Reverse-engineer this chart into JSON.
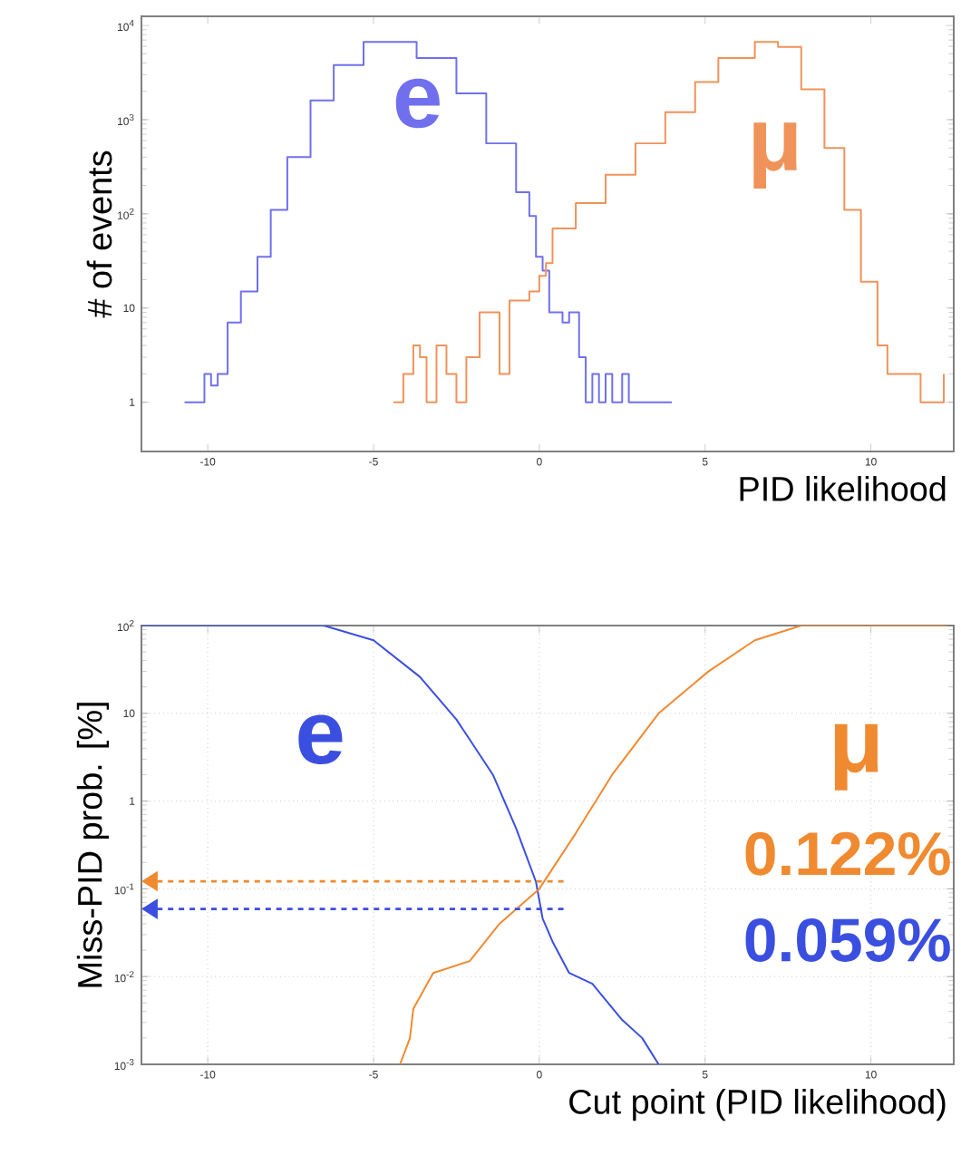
{
  "chart_data": [
    {
      "type": "step",
      "xlabel": "PID likelihood",
      "ylabel": "# of events",
      "log": "y",
      "legend": false,
      "marker": "none",
      "xlim": [
        -12,
        12.5
      ],
      "ylim": [
        0.3,
        12500
      ],
      "xticks": [
        -10,
        -5,
        0,
        5,
        10
      ],
      "yticks": [
        1,
        10,
        {
          "value": 100,
          "label": "10$^{2}$"
        },
        {
          "value": 1000,
          "label": "10$^{3}$"
        },
        {
          "value": 10000,
          "label": "10$^{4}$"
        }
      ],
      "series": [
        {
          "name": "e",
          "color": "#7070ee",
          "x": [
            -10.7,
            -10.1,
            -9.9,
            -9.7,
            -9.4,
            -9.0,
            -8.5,
            -8.1,
            -7.6,
            -6.9,
            -6.2,
            -5.3,
            -4.4,
            -3.7,
            -2.5,
            -1.6,
            -0.7,
            -0.3,
            -0.1,
            0.1,
            0.3,
            0.7,
            0.9,
            1.2,
            1.4,
            1.6,
            1.8,
            2.0,
            2.2,
            2.5,
            2.7,
            2.9,
            3.5,
            4.0
          ],
          "values": [
            1,
            2,
            1.5,
            2,
            7,
            15,
            35,
            110,
            400,
            1600,
            3800,
            6700,
            6700,
            4500,
            1900,
            560,
            170,
            95,
            35,
            25,
            9,
            7,
            9,
            3,
            1,
            2,
            1,
            2,
            1,
            2,
            1,
            1,
            1,
            1
          ]
        },
        {
          "name": "μ",
          "color": "#f0935a",
          "x": [
            -4.4,
            -4.1,
            -3.8,
            -3.6,
            -3.4,
            -3.1,
            -2.8,
            -2.5,
            -2.2,
            -1.8,
            -1.5,
            -1.2,
            -0.9,
            -0.7,
            -0.3,
            0.0,
            0.2,
            0.4,
            1.1,
            2.0,
            2.9,
            3.8,
            4.7,
            5.4,
            6.5,
            7.2,
            7.9,
            8.6,
            9.2,
            9.7,
            10.2,
            10.5,
            11.2,
            11.5,
            12.2
          ],
          "values": [
            1,
            2,
            4,
            3,
            1,
            4,
            2,
            1,
            3,
            9,
            9,
            2,
            12,
            12,
            15,
            22,
            30,
            70,
            130,
            260,
            560,
            1200,
            2500,
            4500,
            6700,
            5900,
            2100,
            500,
            110,
            19,
            4,
            2,
            2,
            1,
            2
          ]
        }
      ]
    },
    {
      "type": "line",
      "xlabel": "Cut point (PID likelihood)",
      "ylabel": "Miss-PID prob. [%]",
      "log": "y",
      "legend": false,
      "marker": "none",
      "grid": true,
      "xlim": [
        -12,
        12.5
      ],
      "ylim": [
        0.001,
        100
      ],
      "xticks": [
        -10,
        -5,
        0,
        5,
        10
      ],
      "yticks": [
        {
          "value": 0.001,
          "label": "10$^{-3}$"
        },
        {
          "value": 0.01,
          "label": "10$^{-2}$"
        },
        {
          "value": 0.1,
          "label": "10$^{-1}$"
        },
        1,
        10,
        {
          "value": 100,
          "label": "10$^{2}$"
        }
      ],
      "ref_lines": [
        {
          "axis": "y",
          "value": 0.122,
          "label": "0.122%",
          "color": "#f08a30",
          "line_style": "dashed"
        },
        {
          "axis": "y",
          "value": 0.059,
          "label": "0.059%",
          "color": "#3a4fe0",
          "line_style": "dashed"
        }
      ],
      "series": [
        {
          "name": "e",
          "color": "#3a4fe0",
          "x": [
            -12,
            -6.5,
            -5.0,
            -3.6,
            -2.5,
            -1.4,
            -0.7,
            -0.1,
            0.1,
            0.4,
            0.9,
            1.6,
            2.5,
            3.1,
            3.6
          ],
          "values": [
            100,
            100,
            68,
            26,
            8.5,
            2.0,
            0.49,
            0.12,
            0.046,
            0.025,
            0.011,
            0.0083,
            0.0032,
            0.002,
            0.001
          ]
        },
        {
          "name": "μ",
          "color": "#f08a30",
          "x": [
            -4.2,
            -3.9,
            -3.8,
            -3.2,
            -2.1,
            -1.2,
            0,
            1.1,
            2.2,
            3.6,
            5.1,
            6.5,
            7.9,
            12.3
          ],
          "values": [
            0.001,
            0.002,
            0.0043,
            0.011,
            0.015,
            0.04,
            0.1,
            0.43,
            2.0,
            10,
            30,
            68,
            100,
            100
          ]
        }
      ]
    }
  ]
}
